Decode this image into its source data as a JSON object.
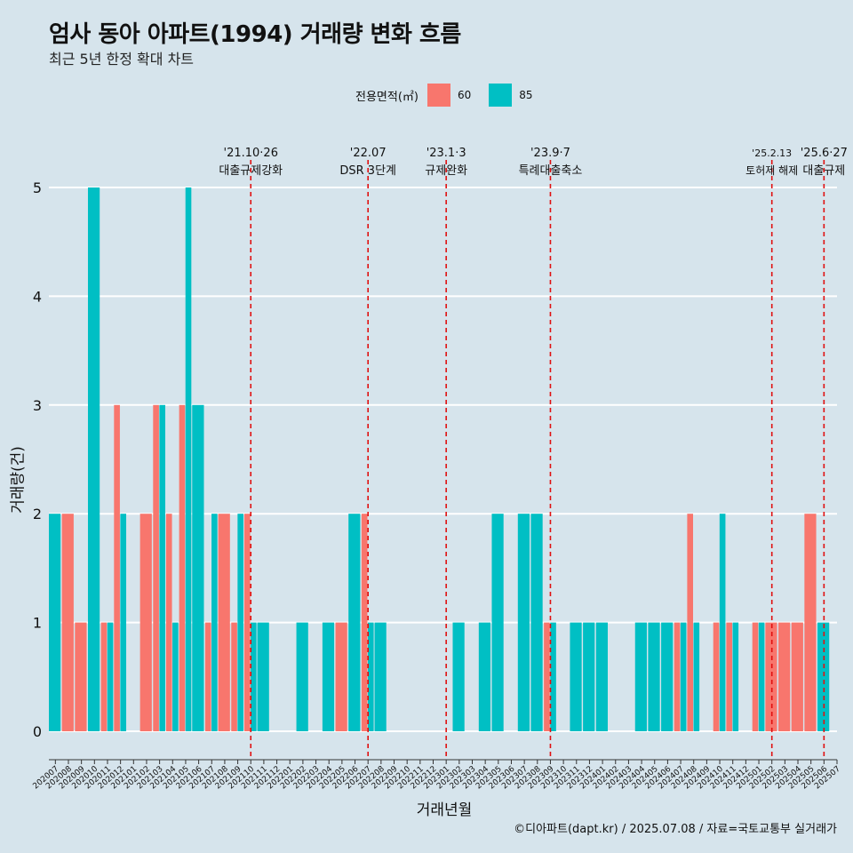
{
  "title": "엄사 동아 아파트(1994) 거래량 변화 흐름",
  "subtitle": "최근 5년 한정 확대 차트",
  "legend": {
    "title": "전용면적(㎡)",
    "items": [
      {
        "label": "60",
        "color": "#f8766d"
      },
      {
        "label": "85",
        "color": "#00bfc4"
      }
    ]
  },
  "caption": "©디아파트(dapt.kr) / 2025.07.08 / 자료=국토교통부 실거래가",
  "chart_data": {
    "type": "bar",
    "title": "엄사 동아 아파트(1994) 거래량 변화 흐름",
    "xlabel": "거래년월",
    "ylabel": "거래량(건)",
    "ylim": [
      0,
      5
    ],
    "yticks": [
      0,
      1,
      2,
      3,
      4,
      5
    ],
    "categories": [
      "202007",
      "202008",
      "202009",
      "202010",
      "202011",
      "202012",
      "202101",
      "202102",
      "202103",
      "202104",
      "202105",
      "202106",
      "202107",
      "202108",
      "202109",
      "202110",
      "202111",
      "202112",
      "202201",
      "202202",
      "202203",
      "202204",
      "202205",
      "202206",
      "202207",
      "202208",
      "202209",
      "202210",
      "202211",
      "202212",
      "202301",
      "202302",
      "202303",
      "202304",
      "202305",
      "202306",
      "202307",
      "202308",
      "202309",
      "202310",
      "202311",
      "202312",
      "202401",
      "202402",
      "202403",
      "202404",
      "202405",
      "202406",
      "202407",
      "202408",
      "202409",
      "202410",
      "202411",
      "202412",
      "202501",
      "202502",
      "202503",
      "202504",
      "202505",
      "202506",
      "202507"
    ],
    "series": [
      {
        "name": "60",
        "color": "#f8766d",
        "values": [
          0,
          2,
          1,
          0,
          1,
          3,
          0,
          2,
          3,
          2,
          3,
          0,
          1,
          2,
          1,
          2,
          0,
          0,
          0,
          0,
          0,
          0,
          1,
          0,
          2,
          0,
          0,
          0,
          0,
          0,
          0,
          0,
          0,
          0,
          0,
          0,
          0,
          0,
          1,
          0,
          0,
          0,
          0,
          0,
          0,
          0,
          0,
          0,
          1,
          2,
          0,
          1,
          1,
          0,
          1,
          1,
          1,
          1,
          2,
          0,
          0
        ]
      },
      {
        "name": "85",
        "color": "#00bfc4",
        "values": [
          2,
          0,
          0,
          5,
          1,
          2,
          0,
          0,
          3,
          1,
          5,
          3,
          2,
          0,
          2,
          1,
          1,
          0,
          0,
          1,
          0,
          1,
          0,
          2,
          1,
          1,
          0,
          0,
          0,
          0,
          0,
          1,
          0,
          1,
          2,
          0,
          2,
          2,
          1,
          0,
          1,
          1,
          1,
          0,
          0,
          1,
          1,
          1,
          1,
          1,
          0,
          2,
          1,
          0,
          1,
          0,
          0,
          0,
          0,
          1,
          0
        ]
      }
    ],
    "annotations": [
      {
        "category": "202110",
        "line1": "'21.10·26",
        "line2": "대출규제강화"
      },
      {
        "category": "202207",
        "line1": "'22.07",
        "line2": "DSR 3단계"
      },
      {
        "category": "202301",
        "line1": "'23.1·3",
        "line2": "규제완화"
      },
      {
        "category": "202309",
        "line1": "'23.9·7",
        "line2": "특례대출축소"
      },
      {
        "category": "202502",
        "line1": "'25.2.13",
        "line2": "토허제 해제"
      },
      {
        "category": "202506",
        "line1": "'25.6·27",
        "line2": "대출규제"
      }
    ]
  }
}
